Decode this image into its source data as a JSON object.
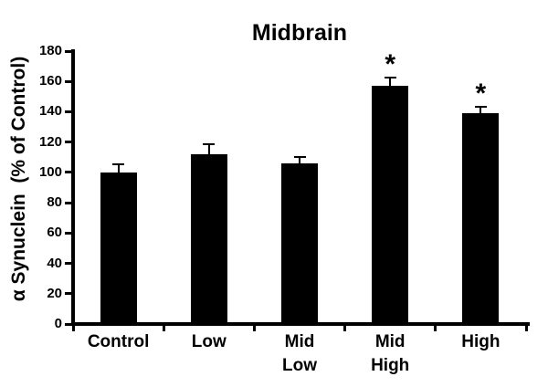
{
  "chart_data": {
    "type": "bar",
    "title": "Midbrain",
    "ylabel": "α Synuclein  (% of Control)",
    "xlabel": "",
    "categories": [
      "Control",
      "Low",
      "Mid Low",
      "Mid High",
      "High"
    ],
    "category_lines": [
      [
        "Control"
      ],
      [
        "Low"
      ],
      [
        "Mid",
        "Low"
      ],
      [
        "Mid",
        "High"
      ],
      [
        "High"
      ]
    ],
    "values": [
      100,
      112,
      106,
      157,
      139
    ],
    "errors": [
      6,
      7,
      5,
      6,
      5
    ],
    "error_direction": "up",
    "significant": [
      false,
      false,
      false,
      true,
      true
    ],
    "significance_marker": "*",
    "ylim": [
      0,
      180
    ],
    "ytick_step": 20,
    "ytick_labels": [
      "0",
      "20",
      "40",
      "60",
      "80",
      "100",
      "120",
      "140",
      "160",
      "180"
    ],
    "grid": false,
    "legend": "none",
    "bar_color": "#000000",
    "axis_color": "#000000",
    "text_color": "#000000",
    "background_color": "#ffffff"
  }
}
